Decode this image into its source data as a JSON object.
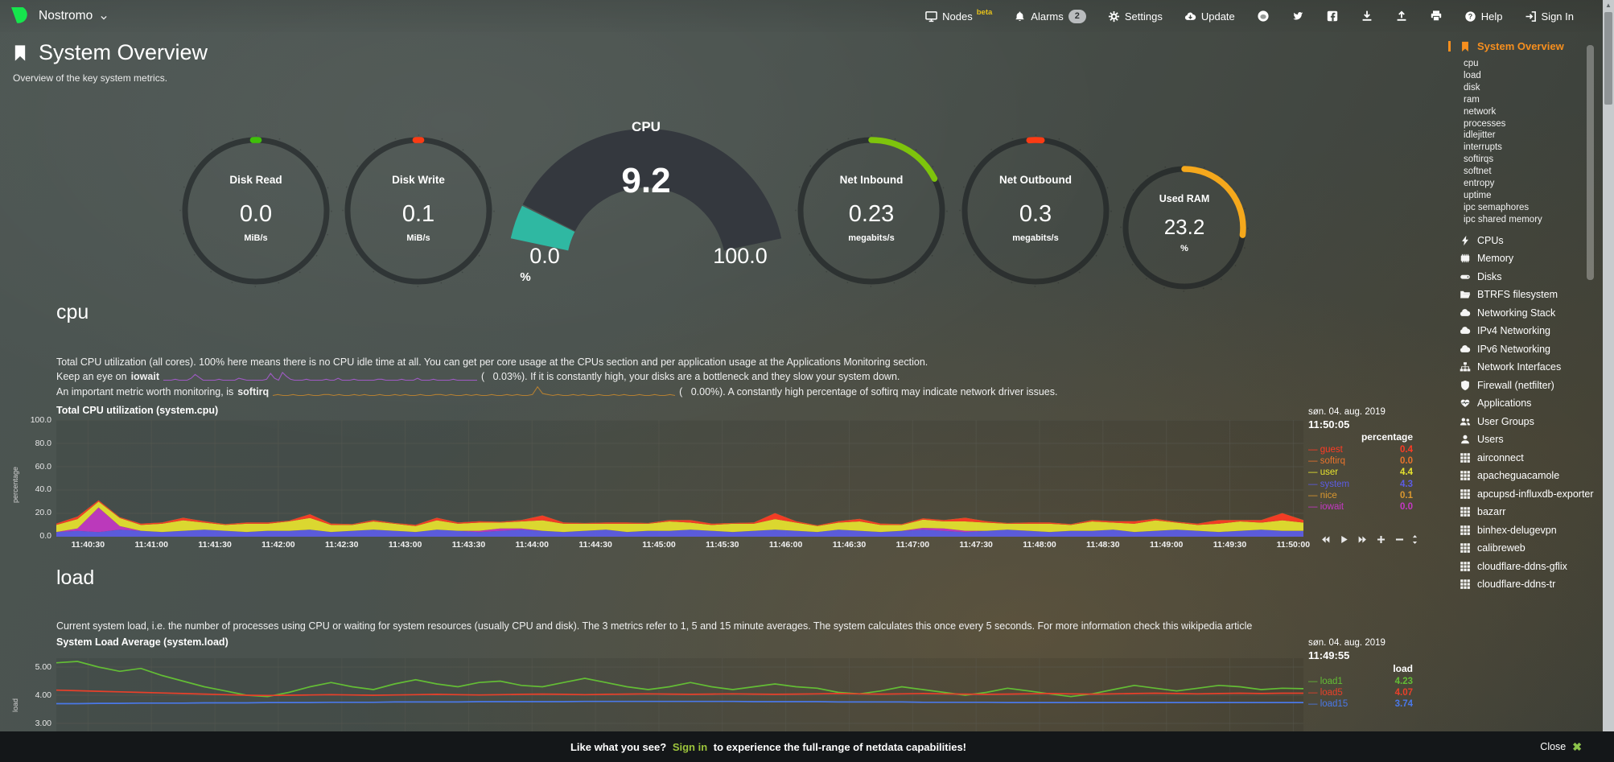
{
  "navbar": {
    "hostname": "Nostromo",
    "menu": [
      {
        "icon": "monitor",
        "label": "Nodes",
        "sup": "beta"
      },
      {
        "icon": "bell",
        "label": "Alarms",
        "badge": "2"
      },
      {
        "icon": "gear",
        "label": "Settings"
      },
      {
        "icon": "cloud-download",
        "label": "Update"
      },
      {
        "icon": "github",
        "label": ""
      },
      {
        "icon": "twitter",
        "label": ""
      },
      {
        "icon": "facebook",
        "label": ""
      },
      {
        "icon": "download",
        "label": ""
      },
      {
        "icon": "upload",
        "label": ""
      },
      {
        "icon": "printer",
        "label": ""
      },
      {
        "icon": "question-circle",
        "label": "Help"
      },
      {
        "icon": "sign-in",
        "label": "Sign In"
      }
    ]
  },
  "page": {
    "title": "System Overview",
    "subtitle": "Overview of the key system metrics."
  },
  "gauges": {
    "rings": [
      {
        "label": "Disk Read",
        "value": "0.0",
        "units": "MiB/s",
        "color": "#3fbf0a",
        "fraction": 0.013,
        "centered": true
      },
      {
        "label": "Disk Write",
        "value": "0.1",
        "units": "MiB/s",
        "color": "#fb3b14",
        "fraction": 0.013,
        "centered": true
      },
      {
        "label": "Net Inbound",
        "value": "0.23",
        "units": "megabits/s",
        "color": "#7ec40c",
        "fraction": 0.175,
        "centered": false
      },
      {
        "label": "Net Outbound",
        "value": "0.3",
        "units": "megabits/s",
        "color": "#fb3b14",
        "fraction": 0.028,
        "centered": true
      },
      {
        "label": "Used RAM",
        "value": "23.2",
        "units": "%",
        "color": "#f5a81c",
        "fraction": 0.27,
        "centered": false
      }
    ],
    "cpu": {
      "label": "CPU",
      "value": "9.2",
      "min": "0.0",
      "max": "100.0",
      "units": "%",
      "color": "#2fb8a2",
      "fraction": 0.092
    }
  },
  "sections": {
    "cpu": {
      "heading": "cpu",
      "line1": "Total CPU utilization (all cores). 100% here means there is no CPU idle time at all. You can get per core usage at the CPUs section and per application usage at the Applications Monitoring section.",
      "line2_pre": "Keep an eye on ",
      "line2_bold": "iowait",
      "line2_post": "(   0.03%). If it is constantly high, your disks are a bottleneck and they slow your system down.",
      "line3_pre": "An important metric worth monitoring, is ",
      "line3_bold": "softirq",
      "line3_post": "(   0.00%). A constantly high percentage of softirq may indicate network driver issues."
    },
    "load": {
      "heading": "load",
      "line1": "Current system load, i.e. the number of processes using CPU or waiting for system resources (usually CPU and disk). The 3 metrics refer to 1, 5 and 15 minute averages. The system calculates this once every 5 seconds. For more information check this wikipedia article"
    }
  },
  "chart_data": [
    {
      "type": "area",
      "stacked": true,
      "title": "Total CPU utilization (system.cpu)",
      "date": "søn. 04. aug. 2019",
      "time": "11:50:05",
      "ylabel": "percentage",
      "units_header": "percentage",
      "ylim": [
        0,
        100
      ],
      "yticks": [
        "100.0",
        "80.0",
        "60.0",
        "40.0",
        "20.0",
        "0.0"
      ],
      "x_ticks": [
        "11:40:30",
        "11:41:00",
        "11:41:30",
        "11:42:00",
        "11:42:30",
        "11:43:00",
        "11:43:30",
        "11:44:00",
        "11:44:30",
        "11:45:00",
        "11:45:30",
        "11:46:00",
        "11:46:30",
        "11:47:00",
        "11:47:30",
        "11:48:00",
        "11:48:30",
        "11:49:00",
        "11:49:30",
        "11:50:00"
      ],
      "legend_position": "right",
      "legend_order": [
        "guest",
        "softirq",
        "user",
        "system",
        "nice",
        "iowait"
      ],
      "series": [
        {
          "name": "system",
          "color": "#5c5ce6",
          "legend_value": "4.3",
          "values": [
            4,
            5,
            4,
            6,
            5,
            4,
            5,
            6,
            5,
            4,
            5,
            5,
            6,
            4,
            5,
            6,
            5,
            4,
            6,
            5,
            4,
            5,
            6,
            5,
            4,
            5,
            6,
            4,
            5,
            5,
            6,
            5,
            4,
            5,
            6,
            5,
            4,
            6,
            5,
            4,
            5,
            6,
            5,
            4,
            5,
            6,
            5,
            4,
            5,
            5,
            6,
            4,
            5,
            6,
            5,
            4,
            5,
            6,
            5,
            5
          ]
        },
        {
          "name": "iowait",
          "color": "#c438c4",
          "legend_value": "0.0",
          "values": [
            0,
            2,
            21,
            3,
            0,
            0,
            0,
            0,
            0,
            0,
            0,
            0,
            0,
            0,
            0,
            0,
            0,
            0,
            0,
            0,
            1,
            2,
            1,
            0,
            0,
            0,
            0,
            0,
            0,
            0,
            0,
            0,
            0,
            0,
            0,
            0,
            0,
            0,
            0,
            0,
            0,
            1.5,
            2,
            1,
            0,
            0,
            0,
            0,
            0,
            0,
            0,
            0,
            0,
            0,
            0,
            0,
            0,
            0,
            0,
            0
          ]
        },
        {
          "name": "nice",
          "color": "#d9972f",
          "legend_value": "0.1",
          "values": [
            0.1,
            0.1,
            0.1,
            0.1,
            0.1,
            0.1,
            0.1,
            0.1,
            0.1,
            0.1,
            0.1,
            0.1,
            0.1,
            0.1,
            0.1,
            0.1,
            0.1,
            0.1,
            0.1,
            0.1,
            0.1,
            0.1,
            0.1,
            0.1,
            0.1,
            0.1,
            0.1,
            0.1,
            0.1,
            0.1,
            0.1,
            0.1,
            0.1,
            0.1,
            0.1,
            0.1,
            0.1,
            0.1,
            0.1,
            0.1,
            0.1,
            0.1,
            0.1,
            0.1,
            0.1,
            0.1,
            0.1,
            0.1,
            0.1,
            0.1,
            0.1,
            0.1,
            0.1,
            0.1,
            0.1,
            0.1,
            0.1,
            0.1,
            0.1,
            0.1
          ]
        },
        {
          "name": "user",
          "color": "#e6e22e",
          "legend_value": "4.4",
          "values": [
            6,
            8,
            5,
            7,
            5,
            7,
            9,
            6,
            5,
            7,
            6,
            8,
            10,
            6,
            5,
            7,
            6,
            5,
            8,
            6,
            7,
            5,
            6,
            9,
            7,
            6,
            5,
            7,
            6,
            8,
            6,
            5,
            7,
            6,
            9,
            7,
            5,
            6,
            8,
            6,
            5,
            7,
            6,
            8,
            7,
            5,
            6,
            7,
            5,
            8,
            6,
            7,
            9,
            6,
            5,
            7,
            8,
            6,
            9,
            7
          ]
        },
        {
          "name": "guest",
          "color": "#ff3b24",
          "legend_value": "0.4",
          "values": [
            1,
            2,
            1,
            0.5,
            1,
            1,
            2,
            1,
            0.5,
            1,
            1,
            0.5,
            3,
            1,
            0.5,
            1,
            0.5,
            1,
            2,
            1,
            1,
            0.5,
            1,
            4,
            1,
            0.5,
            1,
            1,
            0.5,
            1,
            2,
            1,
            0.5,
            1,
            5,
            1,
            0.5,
            1,
            2,
            1,
            0.5,
            1,
            1,
            3,
            1,
            0.5,
            1,
            1,
            0.5,
            1,
            1,
            2,
            1,
            0.5,
            1,
            3,
            1,
            2,
            6,
            2
          ]
        },
        {
          "name": "softirq",
          "color": "#e8732c",
          "legend_value": "0.0",
          "values": [
            0.2,
            0.2,
            0.2,
            0.2,
            0.2,
            0.2,
            0.2,
            0.2,
            0.2,
            0.2,
            0.2,
            0.2,
            0.2,
            0.2,
            0.2,
            0.2,
            0.2,
            0.2,
            0.2,
            0.2,
            0.2,
            0.2,
            0.2,
            0.2,
            0.2,
            0.2,
            0.2,
            0.2,
            0.2,
            0.2,
            0.2,
            0.2,
            0.2,
            0.2,
            0.2,
            0.2,
            0.2,
            0.2,
            0.2,
            0.2,
            0.2,
            0.2,
            0.2,
            0.2,
            0.2,
            0.2,
            0.2,
            0.2,
            0.2,
            0.2,
            0.2,
            0.2,
            0.2,
            0.2,
            0.2,
            0.2,
            0.2,
            0.2,
            0.2,
            0.2
          ]
        }
      ]
    },
    {
      "type": "line",
      "title": "System Load Average (system.load)",
      "date": "søn. 04. aug. 2019",
      "time": "11:49:55",
      "ylabel": "load",
      "units_header": "load",
      "ylim": [
        2.8,
        5.4
      ],
      "yticks": [
        "5.00",
        "4.00",
        "3.00"
      ],
      "legend_position": "right",
      "series": [
        {
          "name": "load1",
          "color": "#63bd35",
          "legend_value": "4.23",
          "values": [
            5.15,
            5.2,
            5.0,
            4.85,
            4.95,
            4.7,
            4.5,
            4.3,
            4.15,
            4.0,
            3.95,
            4.1,
            4.3,
            4.45,
            4.3,
            4.2,
            4.4,
            4.55,
            4.4,
            4.3,
            4.45,
            4.5,
            4.35,
            4.3,
            4.45,
            4.6,
            4.45,
            4.3,
            4.2,
            4.3,
            4.45,
            4.3,
            4.2,
            4.3,
            4.4,
            4.3,
            4.25,
            4.1,
            4.05,
            4.15,
            4.3,
            4.2,
            4.1,
            4.0,
            4.1,
            4.25,
            4.15,
            4.05,
            3.95,
            4.05,
            4.2,
            4.35,
            4.25,
            4.15,
            4.25,
            4.35,
            4.3,
            4.2,
            4.25,
            4.23
          ]
        },
        {
          "name": "load5",
          "color": "#e8402a",
          "legend_value": "4.07",
          "values": [
            4.18,
            4.16,
            4.14,
            4.12,
            4.1,
            4.08,
            4.06,
            4.04,
            4.02,
            4.0,
            3.99,
            4.0,
            4.01,
            4.02,
            4.01,
            4.0,
            4.01,
            4.02,
            4.03,
            4.02,
            4.01,
            4.02,
            4.03,
            4.04,
            4.03,
            4.02,
            4.03,
            4.04,
            4.05,
            4.04,
            4.03,
            4.04,
            4.05,
            4.04,
            4.03,
            4.04,
            4.05,
            4.06,
            4.05,
            4.04,
            4.05,
            4.06,
            4.05,
            4.04,
            4.03,
            4.04,
            4.05,
            4.06,
            4.05,
            4.04,
            4.05,
            4.06,
            4.07,
            4.06,
            4.05,
            4.06,
            4.07,
            4.06,
            4.07,
            4.07
          ]
        },
        {
          "name": "load15",
          "color": "#4a78e8",
          "legend_value": "3.74",
          "values": [
            3.7,
            3.7,
            3.71,
            3.71,
            3.72,
            3.72,
            3.72,
            3.73,
            3.73,
            3.73,
            3.74,
            3.74,
            3.74,
            3.75,
            3.75,
            3.75,
            3.76,
            3.76,
            3.76,
            3.76,
            3.77,
            3.77,
            3.77,
            3.77,
            3.77,
            3.78,
            3.78,
            3.78,
            3.78,
            3.78,
            3.78,
            3.78,
            3.78,
            3.77,
            3.77,
            3.77,
            3.77,
            3.76,
            3.76,
            3.76,
            3.76,
            3.75,
            3.75,
            3.75,
            3.75,
            3.74,
            3.74,
            3.74,
            3.74,
            3.74,
            3.74,
            3.74,
            3.74,
            3.74,
            3.74,
            3.74,
            3.74,
            3.74,
            3.74,
            3.74
          ]
        }
      ]
    },
    {
      "type": "line",
      "name": "iowait-sparkline",
      "color": "#a85bd0",
      "values": [
        0,
        0,
        0,
        1,
        0,
        0,
        0,
        2,
        6,
        3,
        0,
        0,
        0,
        0,
        1,
        0,
        0,
        0,
        0,
        2,
        1,
        0,
        0,
        0,
        0,
        0,
        1,
        7,
        2,
        0,
        8,
        4,
        1,
        0,
        0,
        0,
        1,
        0,
        0,
        0,
        0,
        1,
        0,
        0,
        2,
        0,
        0,
        0,
        1,
        0,
        0,
        0,
        0,
        0,
        1,
        1,
        0,
        0,
        0,
        0,
        1,
        0,
        0,
        0,
        2,
        0,
        0,
        0,
        1,
        0,
        0,
        0,
        0,
        1,
        0,
        0,
        0,
        0,
        0,
        0
      ]
    },
    {
      "type": "line",
      "name": "softirq-sparkline",
      "color": "#bf8430",
      "values": [
        0,
        1,
        0,
        0,
        1,
        0,
        0,
        1,
        0,
        0,
        1,
        1,
        0,
        1,
        0,
        0,
        1,
        0,
        1,
        0,
        0,
        1,
        0,
        0,
        1,
        0,
        1,
        0,
        0,
        1,
        0,
        0,
        1,
        1,
        0,
        1,
        0,
        0,
        1,
        0,
        1,
        0,
        0,
        1,
        0,
        0,
        1,
        0,
        1,
        0,
        0,
        1,
        9,
        2,
        1,
        0,
        1,
        0,
        0,
        1,
        0,
        1,
        0,
        0,
        1,
        0,
        0,
        1,
        0,
        1,
        0,
        0,
        1,
        0,
        0,
        1,
        0,
        0,
        1,
        0
      ]
    }
  ],
  "sidebar": {
    "active": {
      "label": "System Overview"
    },
    "sub_items": [
      "cpu",
      "load",
      "disk",
      "ram",
      "network",
      "processes",
      "idlejitter",
      "interrupts",
      "softirqs",
      "softnet",
      "entropy",
      "uptime",
      "ipc semaphores",
      "ipc shared memory"
    ],
    "sections": [
      {
        "icon": "bolt",
        "label": "CPUs"
      },
      {
        "icon": "memory",
        "label": "Memory"
      },
      {
        "icon": "hdd",
        "label": "Disks"
      },
      {
        "icon": "folder-open",
        "label": "BTRFS filesystem"
      },
      {
        "icon": "cloud",
        "label": "Networking Stack"
      },
      {
        "icon": "cloud",
        "label": "IPv4 Networking"
      },
      {
        "icon": "cloud",
        "label": "IPv6 Networking"
      },
      {
        "icon": "sitemap",
        "label": "Network Interfaces"
      },
      {
        "icon": "shield",
        "label": "Firewall (netfilter)"
      },
      {
        "icon": "heartbeat",
        "label": "Applications"
      },
      {
        "icon": "users",
        "label": "User Groups"
      },
      {
        "icon": "user",
        "label": "Users"
      },
      {
        "icon": "grid",
        "label": "airconnect"
      },
      {
        "icon": "grid",
        "label": "apacheguacamole"
      },
      {
        "icon": "grid",
        "label": "apcupsd-influxdb-exporter"
      },
      {
        "icon": "grid",
        "label": "bazarr"
      },
      {
        "icon": "grid",
        "label": "binhex-delugevpn"
      },
      {
        "icon": "grid",
        "label": "calibreweb"
      },
      {
        "icon": "grid",
        "label": "cloudflare-ddns-gflix"
      },
      {
        "icon": "grid",
        "label": "cloudflare-ddns-tr"
      }
    ]
  },
  "footer": {
    "prefix": "Like what you see?",
    "signin": "Sign in",
    "suffix": "to experience the full-range of netdata capabilities!",
    "close": "Close",
    "close_icon": "✖"
  },
  "colors": {
    "accent_orange": "#f78f1e",
    "brand_green": "#16e54d",
    "footer_green": "#9dc53c"
  }
}
